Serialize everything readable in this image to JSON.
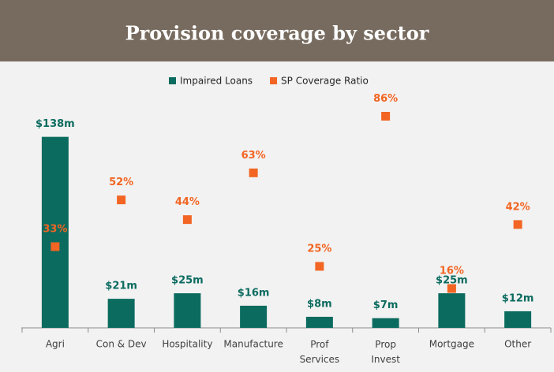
{
  "chart_data": {
    "type": "bar",
    "title": "Provision coverage by sector",
    "categories": [
      "Agri",
      "Con & Dev",
      "Hospitality",
      "Manufacture",
      "Prof\nServices",
      "Prop\nInvest",
      "Mortgage",
      "Other"
    ],
    "series": [
      {
        "name": "Impaired Loans",
        "color": "#0b6b5f",
        "type": "bar",
        "values": [
          138,
          21,
          25,
          16,
          8,
          7,
          25,
          12
        ],
        "value_labels": [
          "$138m",
          "$21m",
          "$25m",
          "$16m",
          "$8m",
          "$7m",
          "$25m",
          "$12m"
        ]
      },
      {
        "name": "SP Coverage Ratio",
        "color": "#f26522",
        "type": "scatter",
        "axis": "y2",
        "values": [
          33,
          52,
          44,
          63,
          25,
          86,
          16,
          42
        ],
        "value_labels": [
          "33%",
          "52%",
          "44%",
          "63%",
          "25%",
          "86%",
          "16%",
          "42%"
        ]
      }
    ],
    "ylim": [
      0,
      160
    ],
    "y2lim": [
      0,
      90
    ],
    "legend": "top"
  }
}
